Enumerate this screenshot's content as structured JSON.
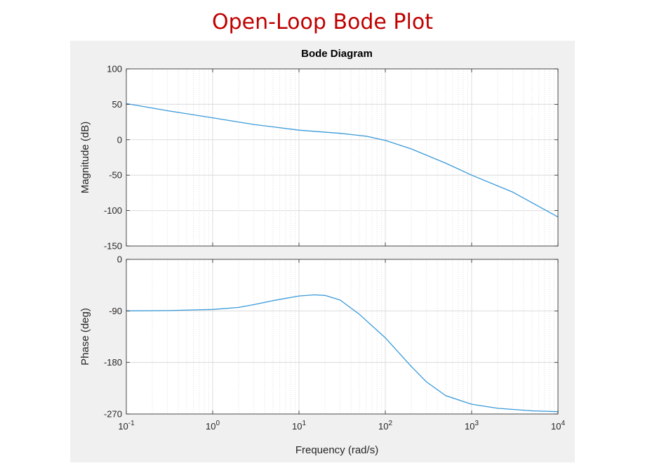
{
  "page_title": "Open-Loop Bode Plot",
  "chart_data": {
    "type": "line",
    "title": "Bode Diagram",
    "xlabel": "Frequency  (rad/s)",
    "x_scale": "log",
    "xlim": [
      0.1,
      10000
    ],
    "x_tick_values": [
      0.1,
      1,
      10,
      100,
      1000,
      10000
    ],
    "x_tick_labels": [
      {
        "base": "10",
        "exp": "-1"
      },
      {
        "base": "10",
        "exp": "0"
      },
      {
        "base": "10",
        "exp": "1"
      },
      {
        "base": "10",
        "exp": "2"
      },
      {
        "base": "10",
        "exp": "3"
      },
      {
        "base": "10",
        "exp": "4"
      }
    ],
    "grid": true,
    "line_color": "#3a9ad9",
    "panels": [
      {
        "id": "magnitude",
        "ylabel": "Magnitude (dB)",
        "ylim": [
          -150,
          100
        ],
        "yticks": [
          100,
          50,
          0,
          -50,
          -100,
          -150
        ],
        "ytick_labels": [
          "100",
          "50",
          "0",
          "-50",
          "-100",
          "-150"
        ],
        "series": [
          {
            "x": [
              0.1,
              0.3,
              1,
              3,
              10,
              30,
              60,
              100,
              200,
              500,
              1000,
              3000,
              10000
            ],
            "y": [
              51,
              41,
              31,
              21.5,
              13.5,
              9,
              5,
              -1,
              -13,
              -33,
              -50,
              -74,
              -109
            ]
          }
        ]
      },
      {
        "id": "phase",
        "ylabel": "Phase (deg)",
        "ylim": [
          -270,
          0
        ],
        "yticks": [
          0,
          -90,
          -180,
          -270
        ],
        "ytick_labels": [
          "0",
          "-90",
          "-180",
          "-270"
        ],
        "series": [
          {
            "x": [
              0.1,
              0.3,
              1,
              2,
              3,
              5,
              10,
              15,
              20,
              30,
              50,
              100,
              200,
              300,
              500,
              1000,
              2000,
              5000,
              10000
            ],
            "y": [
              -90,
              -89.5,
              -87.5,
              -84,
              -79,
              -72,
              -64,
              -62,
              -63,
              -71,
              -96,
              -137,
              -187,
              -214,
              -238,
              -253,
              -260,
              -264.5,
              -266
            ]
          }
        ]
      }
    ]
  }
}
